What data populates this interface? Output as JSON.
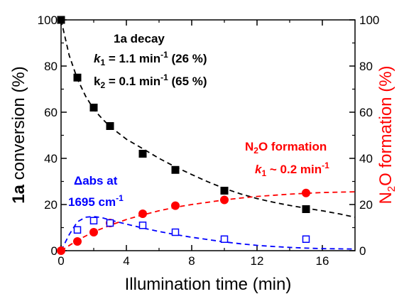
{
  "chart_data": {
    "type": "scatter",
    "xlabel": "Illumination  time (min)",
    "ylabel_left": {
      "prefix": "1a",
      "rest": " conversion (%)"
    },
    "ylabel_right": {
      "n": "N",
      "sub": "2",
      "rest": "O formation (%)"
    },
    "xlim": [
      0,
      18
    ],
    "ylim": [
      0,
      100
    ],
    "x_ticks": [
      0,
      4,
      8,
      12,
      16
    ],
    "x_tick_labels": [
      "0",
      "4",
      "8",
      "12",
      "16"
    ],
    "y_ticks": [
      0,
      20,
      40,
      60,
      80,
      100
    ],
    "y_tick_labels": [
      "0",
      "20",
      "40",
      "60",
      "80",
      "100"
    ],
    "colors": {
      "decay": "#000000",
      "n2o": "#ff0000",
      "dabs": "#0000ff"
    },
    "series": [
      {
        "name": "1a decay",
        "marker": "filled-square",
        "color": "#000000",
        "x": [
          0,
          1,
          2,
          3,
          5,
          7,
          10,
          15
        ],
        "y": [
          100,
          75,
          62,
          54,
          42,
          35,
          26,
          18
        ]
      },
      {
        "name": "N2O formation",
        "marker": "filled-circle",
        "color": "#ff0000",
        "x": [
          0,
          1,
          2,
          3,
          5,
          7,
          10,
          15
        ],
        "y": [
          0,
          4,
          8,
          12,
          16,
          19.5,
          22,
          25
        ]
      },
      {
        "name": "Δabs at 1695 cm-1",
        "marker": "open-square",
        "color": "#0000ff",
        "x": [
          1,
          2,
          3,
          5,
          7,
          10,
          15
        ],
        "y": [
          9,
          13,
          12,
          11,
          8,
          5,
          5
        ]
      }
    ],
    "fit_curves": [
      {
        "color": "#000000",
        "x": [
          0,
          0.5,
          1,
          1.5,
          2,
          2.5,
          3,
          4,
          5,
          6,
          7,
          8,
          9,
          10,
          11,
          12,
          13,
          14,
          15,
          16,
          17,
          18
        ],
        "y": [
          100,
          84.6,
          74.4,
          67.0,
          61.3,
          57.3,
          53.8,
          48.3,
          44.2,
          40.0,
          36.3,
          33.0,
          29.8,
          27.0,
          24.6,
          22.6,
          21.0,
          19.6,
          18.4,
          17.3,
          16.0,
          14.5
        ]
      },
      {
        "color": "#ff0000",
        "x": [
          0,
          1,
          2,
          3,
          4,
          5,
          6,
          7,
          8,
          9,
          10,
          11,
          12,
          14,
          16,
          18
        ],
        "y": [
          0,
          4.5,
          8.2,
          11.0,
          13.5,
          15.5,
          17.3,
          18.8,
          20.0,
          21.0,
          22.0,
          22.8,
          23.5,
          24.5,
          25.2,
          25.5
        ]
      },
      {
        "color": "#0000ff",
        "x": [
          0,
          0.5,
          1,
          1.5,
          2,
          2.5,
          3,
          4,
          5,
          6,
          7,
          8,
          9,
          10,
          11,
          12,
          13,
          14,
          15,
          16,
          17,
          18
        ],
        "y": [
          0,
          7,
          12.5,
          14.5,
          14.8,
          14.3,
          13.3,
          11.5,
          9.8,
          8.3,
          7.0,
          5.8,
          4.8,
          3.8,
          3.0,
          2.3,
          1.8,
          1.4,
          1.1,
          0.9,
          0.8,
          0.7
        ]
      }
    ],
    "annotations": {
      "decay_title": {
        "bold": "1a",
        "rest": " decay"
      },
      "decay_k1": {
        "k": "k",
        "sub": "1",
        "mid": " = 1.1 min",
        "sup": "-1",
        "tail": " (26 %)"
      },
      "decay_k2": {
        "k": "k",
        "sub": "2",
        "mid": " = 0.1 min",
        "sup": "-1",
        "tail": " (65 %)"
      },
      "n2o_title": {
        "n": "N",
        "sub": "2",
        "rest": "O formation"
      },
      "n2o_k1": {
        "k": "k",
        "sub": "1",
        "mid": " ~ 0.2 min",
        "sup": "-1"
      },
      "dabs_line1": "Δabs at",
      "dabs_line2": {
        "text": "1695 cm",
        "sup": "-1"
      }
    }
  }
}
